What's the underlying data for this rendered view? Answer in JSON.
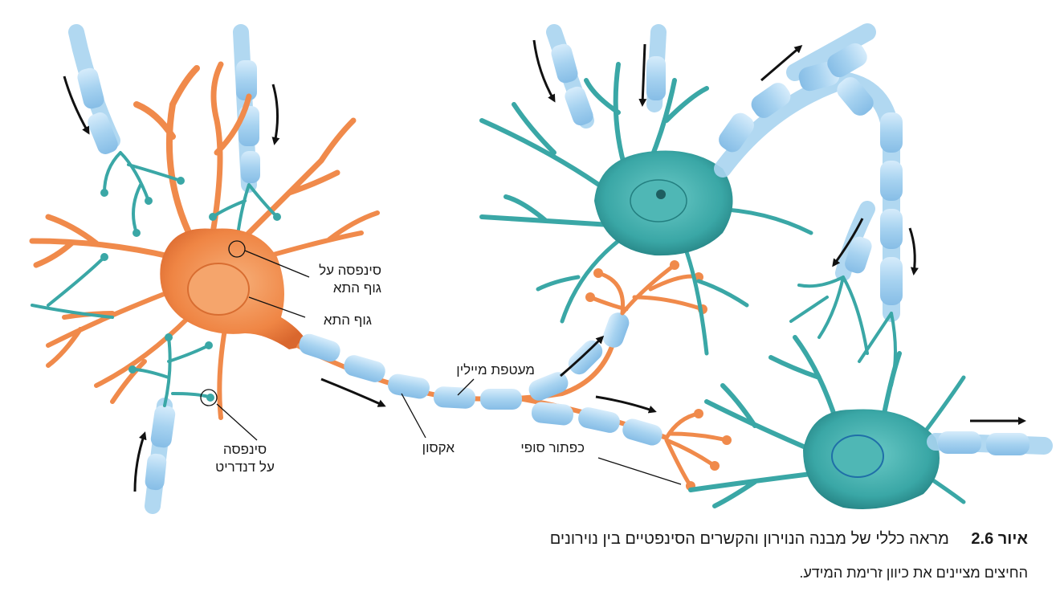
{
  "labels": {
    "synapse_on_cell_body_line1": "סינפסה על",
    "synapse_on_cell_body_line2": "גוף התא",
    "cell_body": "גוף התא",
    "synapse_on_dendrite_line1": "סינפסה",
    "synapse_on_dendrite_line2": "על דנדריט",
    "axon": "אקסון",
    "myelin_sheath": "מעטפת מיילין",
    "terminal_button": "כפתור סופי"
  },
  "caption": {
    "figure_number": "איור 2.6",
    "title": "מראה כללי של מבנה הנוירון והקשרים הסינפטיים בין נוירונים",
    "subtitle": "החיצים מציינים את כיוון זרימת המידע."
  },
  "colors": {
    "orange_neuron": "#f08a4b",
    "teal_neuron": "#3aa7a6",
    "myelin": "#a9d4f0",
    "arrow": "#111111"
  }
}
